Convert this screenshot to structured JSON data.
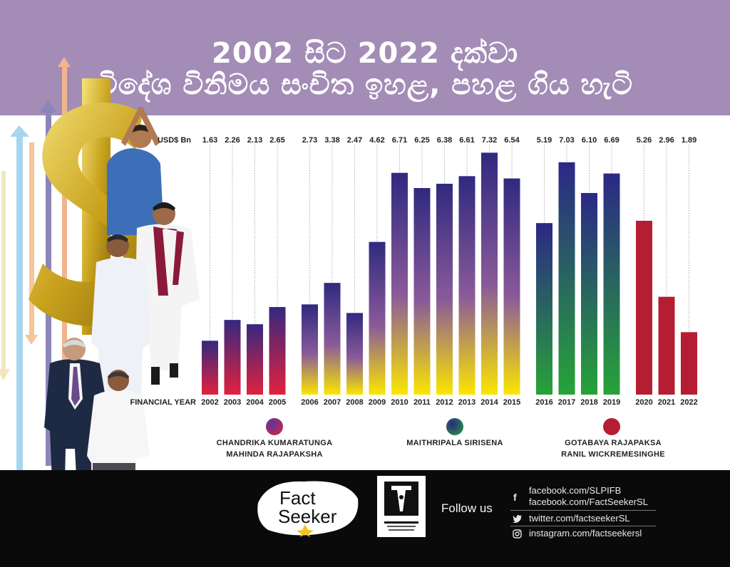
{
  "title": {
    "line1": "2002 සිට 2022 දක්වා",
    "line2": "විදේශ විනිමය සංචිත ඉහළ, පහළ ගිය හැටි"
  },
  "chart_data": {
    "type": "bar",
    "y_unit_label": "USD$ Bn",
    "x_axis_label": "FINANCIAL YEAR",
    "ylim": [
      0,
      7.5
    ],
    "grid": false,
    "categories": [
      "2002",
      "2003",
      "2004",
      "2005",
      "2006",
      "2007",
      "2008",
      "2009",
      "2010",
      "2011",
      "2012",
      "2013",
      "2014",
      "2015",
      "2016",
      "2017",
      "2018",
      "2019",
      "2020",
      "2021",
      "2022"
    ],
    "values": [
      1.63,
      2.26,
      2.13,
      2.65,
      2.73,
      3.38,
      2.47,
      4.62,
      6.71,
      6.25,
      6.38,
      6.61,
      7.32,
      6.54,
      5.19,
      7.03,
      6.1,
      6.69,
      5.26,
      2.96,
      1.89
    ],
    "value_labels": [
      "1.63",
      "2.26",
      "2.13",
      "2.65",
      "2.73",
      "3.38",
      "2.47",
      "4.62",
      "6.71",
      "6.25",
      "6.38",
      "6.61",
      "7.32",
      "6.54",
      "5.19",
      "7.03",
      "6.10",
      "6.69",
      "5.26",
      "2.96",
      "1.89"
    ],
    "groups": [
      {
        "leaders": [
          "CHANDRIKA KUMARATUNGA",
          "MAHINDA RAJAPAKSHA"
        ],
        "years": [
          "2002",
          "2003",
          "2004",
          "2005",
          "2006",
          "2007",
          "2008",
          "2009",
          "2010",
          "2011",
          "2012",
          "2013",
          "2014",
          "2015"
        ]
      },
      {
        "leaders": [
          "MAITHRIPALA  SIRISENA"
        ],
        "years": [
          "2016",
          "2017",
          "2018",
          "2019"
        ]
      },
      {
        "leaders": [
          "GOTABAYA RAJAPAKSA",
          "RANIL WICKREMESINGHE"
        ],
        "years": [
          "2020",
          "2021",
          "2022"
        ]
      }
    ],
    "colors": {
      "group1_top": "#3a2a8a",
      "group1_bottom_early": "#e0204a",
      "group1_bottom_late": "#f8e000",
      "group2_top": "#2a2a86",
      "group2_bottom": "#2aa53a",
      "group3": "#b51e32"
    }
  },
  "footer": {
    "logo_text_line1": "Fact",
    "logo_text_line2": "Seeker",
    "follow_label": "Follow us",
    "facebook_1": "facebook.com/SLPIFB",
    "facebook_2": "facebook.com/FactSeekerSL",
    "twitter": "twitter.com/factseekerSL",
    "instagram": "instagram.com/factseekersl",
    "facebook_icon": "f",
    "twitter_icon": "bird-icon",
    "instagram_icon": "camera-icon"
  }
}
